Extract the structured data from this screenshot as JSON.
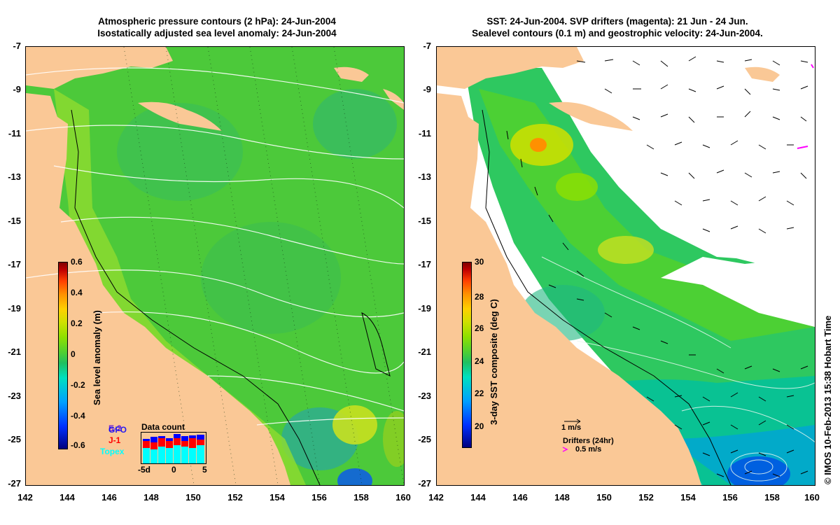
{
  "left_panel": {
    "title_line1": "Atmospheric pressure contours (2 hPa): 24-Jun-2004",
    "title_line2": "Isostatically adjusted sea level anomaly: 24-Jun-2004",
    "colorbar": {
      "label": "Sea level anomaly (m)",
      "ticks": [
        "0.6",
        "0.4",
        "0.2",
        "0",
        "-0.2",
        "-0.4",
        "-0.6"
      ],
      "colors": [
        "#00007f",
        "#0030ff",
        "#00a0ff",
        "#00e0c0",
        "#20c060",
        "#50d030",
        "#90e000",
        "#d0e000",
        "#ffd000",
        "#ff9000",
        "#ff4000",
        "#c00000",
        "#7f0000"
      ]
    },
    "data_count": {
      "title": "Data count",
      "xticks": [
        "-5d",
        "0",
        "5"
      ],
      "satellites": [
        {
          "name": "E-2",
          "color": "#7a2ad0"
        },
        {
          "name": "GFO",
          "color": "#0000ff"
        },
        {
          "name": "J-1",
          "color": "#ff0000"
        },
        {
          "name": "Topex",
          "color": "#00ffff"
        }
      ]
    }
  },
  "right_panel": {
    "title_line1": "SST: 24-Jun-2004. SVP drifters (magenta): 21 Jun - 24 Jun.",
    "title_line2": "Sealevel contours (0.1 m) and geostrophic velocity: 24-Jun-2004.",
    "colorbar": {
      "label": "3-day SST composite (deg C)",
      "ticks": [
        "30",
        "28",
        "26",
        "24",
        "22",
        "20"
      ],
      "colors": [
        "#00007f",
        "#0030ff",
        "#00a0ff",
        "#00e0c0",
        "#20c060",
        "#50d030",
        "#90e000",
        "#d0e000",
        "#ffd000",
        "#ff9000",
        "#ff4000",
        "#c00000",
        "#7f0000"
      ]
    },
    "velocity_scale_label": "1 m/s",
    "drifters_label": "Drifters (24hr)",
    "drifters_speed_label": "0.5 m/s",
    "drifter_color": "#ff00ff"
  },
  "axes": {
    "y_ticks": [
      "-7",
      "-9",
      "-11",
      "-13",
      "-15",
      "-17",
      "-19",
      "-21",
      "-23",
      "-25",
      "-27"
    ],
    "x_ticks": [
      "142",
      "144",
      "146",
      "148",
      "150",
      "152",
      "154",
      "156",
      "158",
      "160"
    ],
    "lat_range": [
      -27,
      -7
    ],
    "lon_range": [
      142,
      160
    ]
  },
  "credit": "© IMOS 10-Feb-2013 15:38 Hobart Time",
  "colors": {
    "land": "#fac896",
    "ocean_sla": "#4fcf3a",
    "no_data": "#ffffff"
  }
}
